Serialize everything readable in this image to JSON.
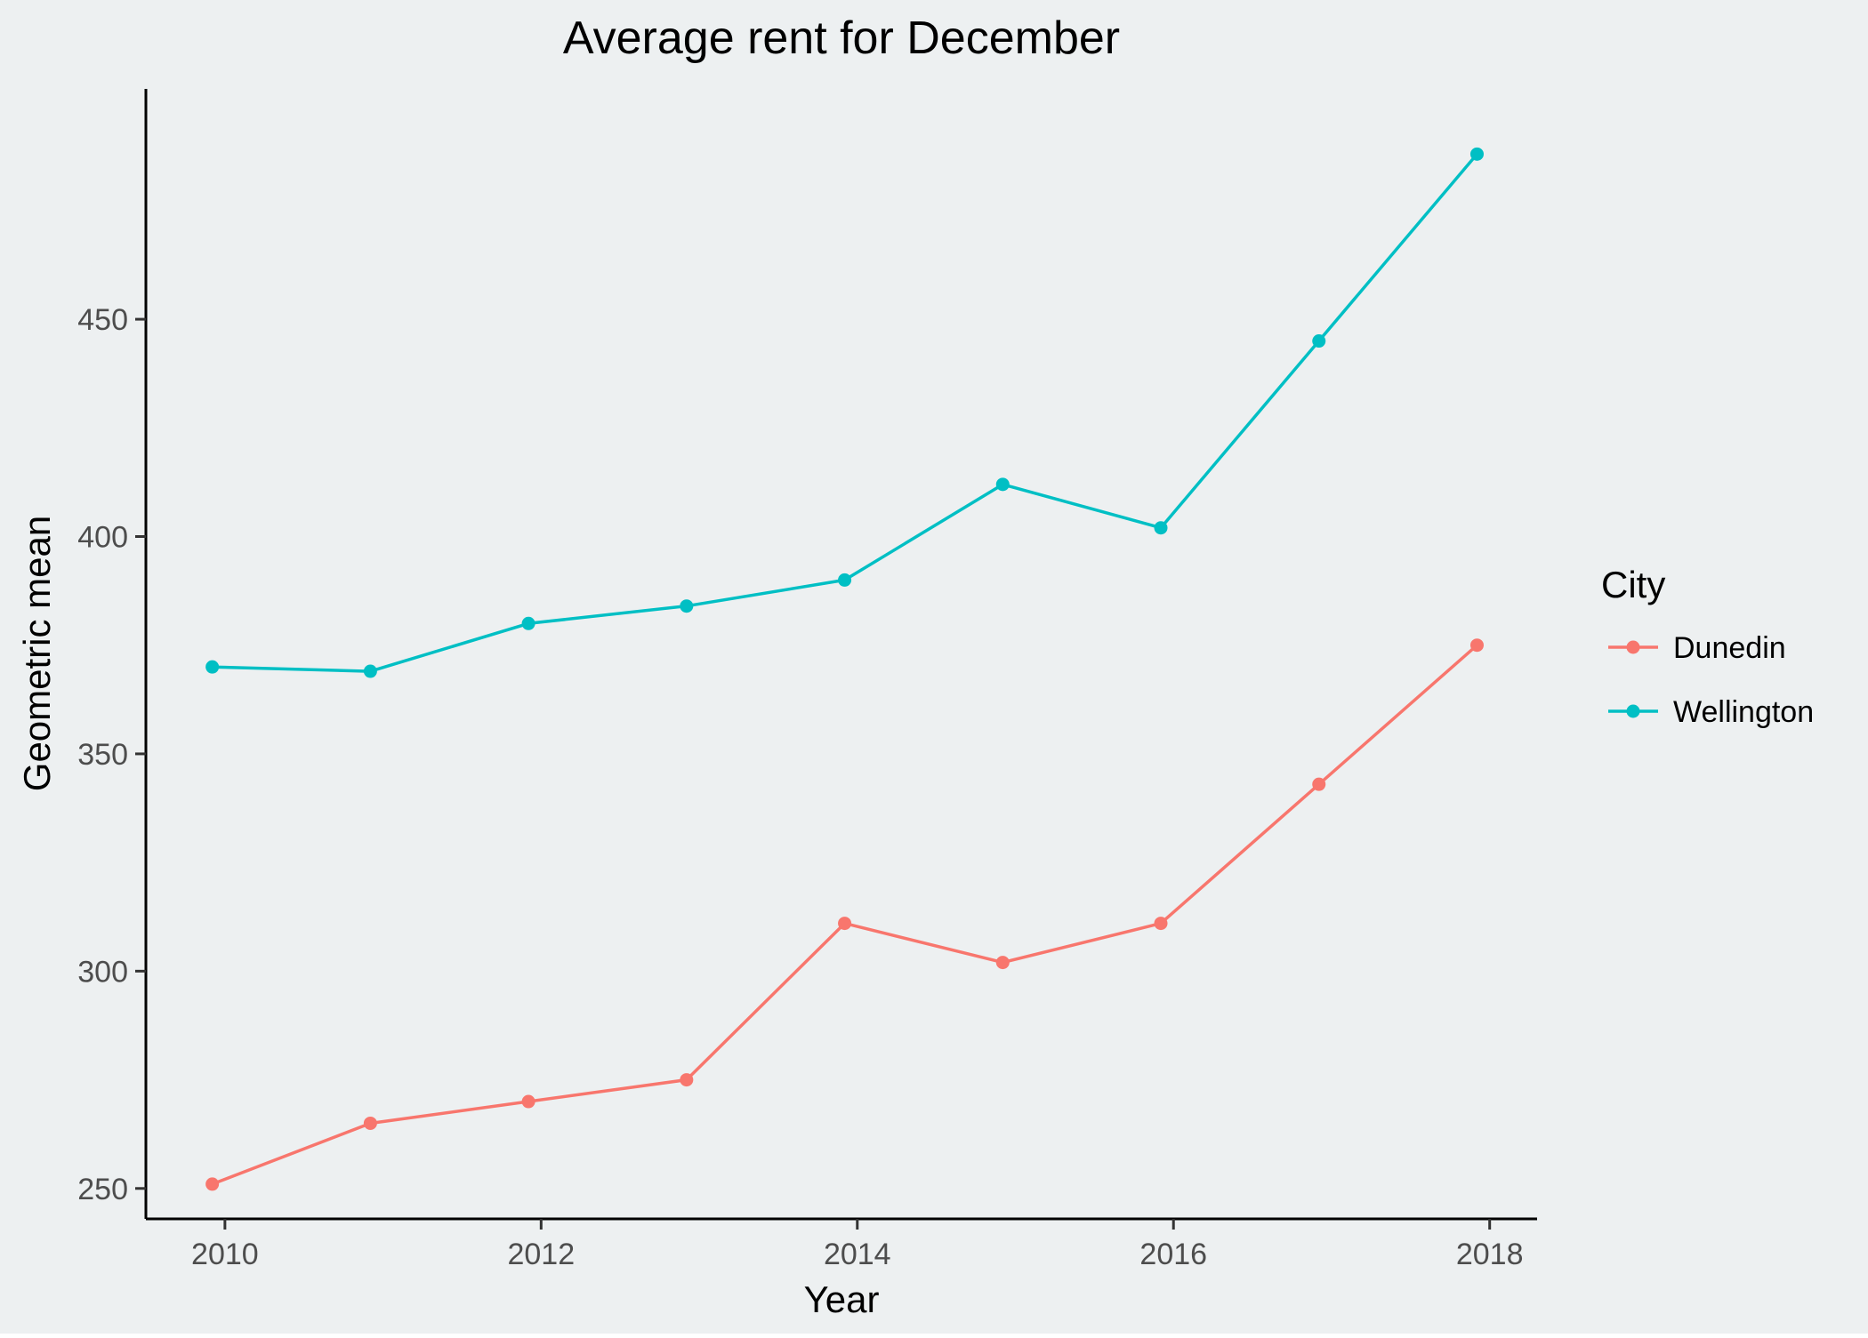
{
  "chart_data": {
    "type": "line",
    "title": "Average rent for December",
    "xlabel": "Year",
    "ylabel": "Geometric mean",
    "x": [
      2009.92,
      2010.92,
      2011.92,
      2012.92,
      2013.92,
      2014.92,
      2015.92,
      2016.92,
      2017.92
    ],
    "x_ticks": [
      2010,
      2012,
      2014,
      2016,
      2018
    ],
    "y_ticks": [
      250,
      300,
      350,
      400,
      450
    ],
    "xlim": [
      2009.5,
      2018.3
    ],
    "ylim": [
      243,
      503
    ],
    "grid": false,
    "legend": {
      "title": "City",
      "placement": "right"
    },
    "series": [
      {
        "name": "Dunedin",
        "color": "#F8766D",
        "values": [
          251,
          265,
          270,
          275,
          311,
          302,
          311,
          343,
          375
        ]
      },
      {
        "name": "Wellington",
        "color": "#00BFC4",
        "values": [
          370,
          369,
          380,
          384,
          390,
          412,
          402,
          445,
          488
        ]
      }
    ],
    "panel_color": "#EDF0F1"
  }
}
